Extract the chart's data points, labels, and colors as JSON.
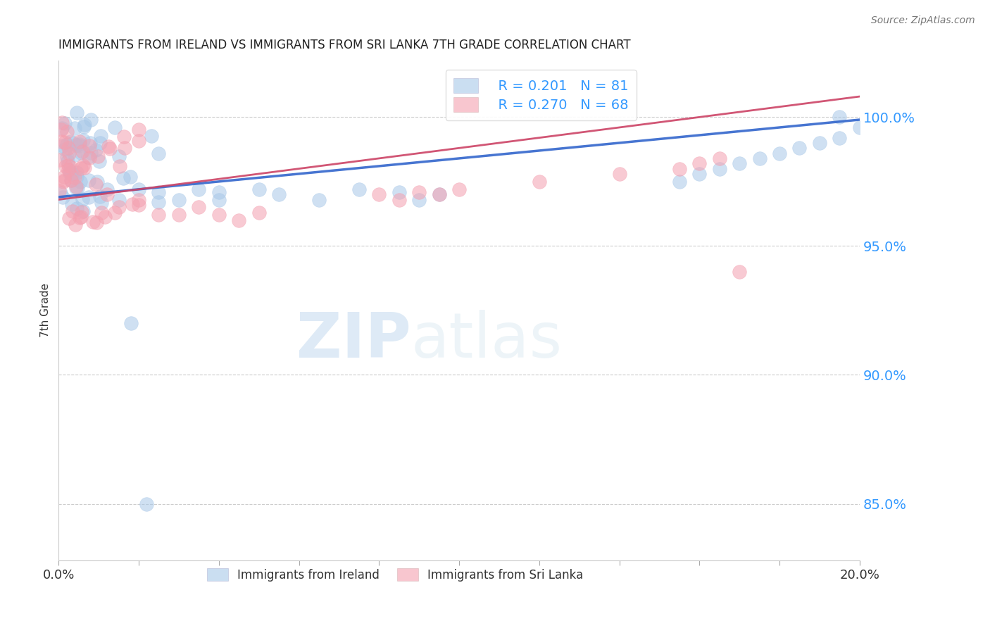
{
  "title": "IMMIGRANTS FROM IRELAND VS IMMIGRANTS FROM SRI LANKA 7TH GRADE CORRELATION CHART",
  "source": "Source: ZipAtlas.com",
  "ylabel": "7th Grade",
  "legend_label1": "Immigrants from Ireland",
  "legend_label2": "Immigrants from Sri Lanka",
  "legend_R1": "R = 0.201",
  "legend_N1": "N = 81",
  "legend_R2": "R = 0.270",
  "legend_N2": "N = 68",
  "color_ireland": "#a8c8e8",
  "color_srilanka": "#f4a0b0",
  "color_ireland_line": "#3366cc",
  "color_srilanka_line": "#cc4466",
  "watermark_zip": "ZIP",
  "watermark_atlas": "atlas",
  "xlim": [
    0.0,
    0.2
  ],
  "ylim": [
    0.828,
    1.022
  ],
  "ytick_vals": [
    0.85,
    0.9,
    0.95,
    1.0
  ],
  "ytick_labels": [
    "85.0%",
    "90.0%",
    "95.0%",
    "100.0%"
  ],
  "background_color": "#ffffff",
  "ireland_x": [
    0.0005,
    0.001,
    0.001,
    0.001,
    0.001,
    0.001,
    0.0015,
    0.002,
    0.002,
    0.002,
    0.002,
    0.002,
    0.002,
    0.002,
    0.0025,
    0.003,
    0.003,
    0.003,
    0.003,
    0.003,
    0.003,
    0.003,
    0.003,
    0.0035,
    0.004,
    0.004,
    0.004,
    0.004,
    0.004,
    0.004,
    0.004,
    0.005,
    0.005,
    0.005,
    0.005,
    0.005,
    0.005,
    0.006,
    0.006,
    0.006,
    0.006,
    0.007,
    0.007,
    0.007,
    0.007,
    0.008,
    0.008,
    0.008,
    0.009,
    0.009,
    0.01,
    0.01,
    0.011,
    0.012,
    0.013,
    0.015,
    0.018,
    0.02,
    0.022,
    0.025,
    0.03,
    0.035,
    0.04,
    0.045,
    0.05,
    0.06,
    0.07,
    0.08,
    0.095,
    0.11,
    0.13,
    0.15,
    0.155,
    0.16,
    0.165,
    0.17,
    0.175,
    0.18,
    0.185,
    0.19,
    0.195
  ],
  "ireland_y": [
    0.975,
    0.98,
    0.975,
    0.97,
    0.968,
    0.965,
    0.978,
    0.982,
    0.978,
    0.975,
    0.972,
    0.97,
    0.968,
    0.965,
    0.98,
    0.982,
    0.98,
    0.978,
    0.976,
    0.974,
    0.972,
    0.97,
    0.968,
    0.978,
    0.98,
    0.978,
    0.976,
    0.975,
    0.973,
    0.971,
    0.969,
    0.979,
    0.977,
    0.975,
    0.974,
    0.972,
    0.97,
    0.978,
    0.976,
    0.974,
    0.972,
    0.977,
    0.975,
    0.973,
    0.971,
    0.976,
    0.974,
    0.972,
    0.975,
    0.973,
    0.974,
    0.972,
    0.973,
    0.972,
    0.971,
    0.972,
    0.973,
    0.974,
    0.975,
    0.976,
    0.977,
    0.978,
    0.979,
    0.98,
    0.981,
    0.982,
    0.983,
    0.984,
    0.985,
    0.986,
    0.987,
    0.988,
    0.989,
    0.99,
    0.85,
    0.991,
    0.992,
    0.993,
    0.994,
    0.996,
    1.0
  ],
  "srilanka_x": [
    0.0005,
    0.001,
    0.001,
    0.001,
    0.001,
    0.0015,
    0.002,
    0.002,
    0.002,
    0.002,
    0.002,
    0.0025,
    0.003,
    0.003,
    0.003,
    0.003,
    0.003,
    0.003,
    0.004,
    0.004,
    0.004,
    0.004,
    0.004,
    0.005,
    0.005,
    0.005,
    0.005,
    0.006,
    0.006,
    0.006,
    0.007,
    0.007,
    0.007,
    0.008,
    0.008,
    0.009,
    0.009,
    0.01,
    0.011,
    0.012,
    0.013,
    0.015,
    0.018,
    0.02,
    0.025,
    0.03,
    0.04,
    0.05,
    0.06,
    0.07,
    0.08,
    0.09,
    0.1,
    0.11,
    0.12,
    0.13,
    0.14,
    0.15,
    0.155,
    0.158,
    0.16,
    0.163,
    0.165,
    0.168,
    0.17,
    0.172,
    0.175,
    0.178
  ],
  "srilanka_y": [
    0.978,
    0.982,
    0.978,
    0.975,
    0.97,
    0.98,
    0.981,
    0.978,
    0.975,
    0.972,
    0.968,
    0.979,
    0.982,
    0.979,
    0.976,
    0.974,
    0.971,
    0.968,
    0.981,
    0.978,
    0.975,
    0.972,
    0.969,
    0.979,
    0.977,
    0.975,
    0.972,
    0.978,
    0.976,
    0.973,
    0.977,
    0.975,
    0.972,
    0.976,
    0.973,
    0.975,
    0.972,
    0.974,
    0.973,
    0.972,
    0.971,
    0.972,
    0.973,
    0.975,
    0.965,
    0.96,
    0.958,
    0.956,
    0.955,
    0.954,
    0.953,
    0.953,
    0.953,
    0.953,
    0.953,
    0.954,
    0.955,
    0.956,
    0.94,
    0.942,
    0.944,
    0.946,
    0.948,
    0.95,
    0.952,
    0.954,
    0.956,
    0.958
  ]
}
